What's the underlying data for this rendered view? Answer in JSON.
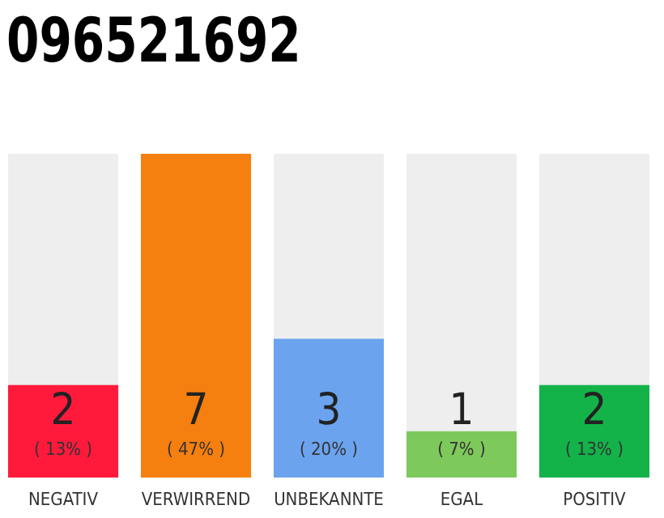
{
  "chart_data": {
    "type": "bar",
    "title": "096521692",
    "categories": [
      "NEGATIV",
      "VERWIRREND",
      "UNBEKANNTE",
      "EGAL",
      "POSITIV"
    ],
    "values": [
      2,
      7,
      3,
      1,
      2
    ],
    "colors": [
      "#ff1a3c",
      "#f57f0f",
      "#6ba3ef",
      "#7ec95c",
      "#13b34a"
    ],
    "value_labels": [
      "2\n( 13% )",
      "7\n( 47% )",
      "3\n( 20% )",
      "1\n( 7% )",
      "2\n( 13% )"
    ]
  }
}
